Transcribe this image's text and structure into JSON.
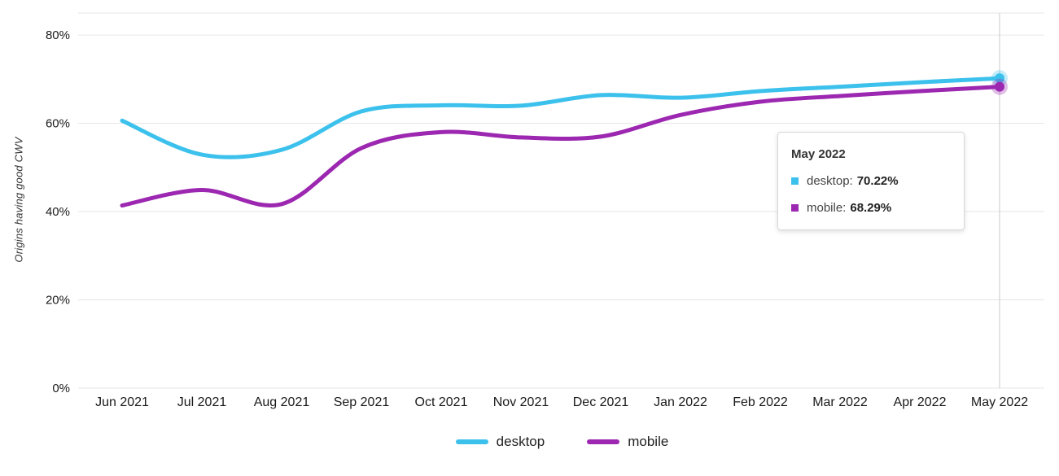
{
  "chart_data": {
    "type": "line",
    "title": "",
    "xlabel": "",
    "ylabel": "Origins having good CWV",
    "categories": [
      "Jun 2021",
      "Jul 2021",
      "Aug 2021",
      "Sep 2021",
      "Oct 2021",
      "Nov 2021",
      "Dec 2021",
      "Jan 2022",
      "Feb 2022",
      "Mar 2022",
      "Apr 2022",
      "May 2022"
    ],
    "series": [
      {
        "name": "desktop",
        "color": "#3CC1EC",
        "values": [
          60.6,
          52.9,
          54.0,
          62.7,
          64.1,
          64.0,
          66.4,
          65.8,
          67.3,
          68.3,
          69.3,
          70.22
        ]
      },
      {
        "name": "mobile",
        "color": "#9C27B0",
        "values": [
          41.4,
          44.9,
          41.7,
          54.4,
          58.0,
          56.8,
          57.0,
          61.9,
          64.9,
          66.2,
          67.3,
          68.29
        ]
      }
    ],
    "ylim": [
      0,
      85
    ],
    "yticks": [
      0,
      20,
      40,
      60,
      80
    ],
    "ytick_labels": [
      "0%",
      "20%",
      "40%",
      "60%",
      "80%"
    ],
    "grid": true,
    "legend_position": "bottom",
    "hovered_category": "May 2022"
  },
  "tooltip": {
    "title": "May 2022",
    "items": [
      {
        "label": "desktop:",
        "value": "70.22%",
        "color": "#3CC1EC"
      },
      {
        "label": "mobile:",
        "value": "68.29%",
        "color": "#9C27B0"
      }
    ]
  },
  "legend": {
    "items": [
      {
        "label": "desktop",
        "color": "#3CC1EC"
      },
      {
        "label": "mobile",
        "color": "#9C27B0"
      }
    ]
  }
}
